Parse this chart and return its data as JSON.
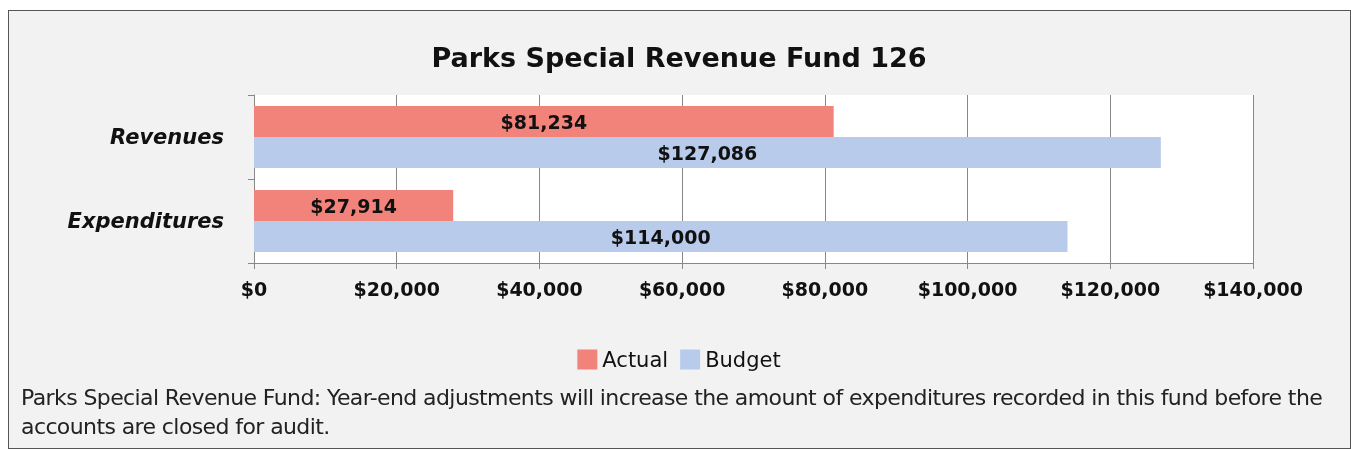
{
  "chart_data": {
    "type": "bar",
    "orientation": "horizontal",
    "title": "Parks Special Revenue Fund 126",
    "categories": [
      "Revenues",
      "Expenditures"
    ],
    "series": [
      {
        "name": "Actual",
        "color": "#f2837a",
        "values": [
          81234,
          27914
        ],
        "value_labels": [
          "$81,234",
          "$27,914"
        ]
      },
      {
        "name": "Budget",
        "color": "#b9cbeb",
        "values": [
          127086,
          114000
        ],
        "value_labels": [
          "$127,086",
          "$114,000"
        ]
      }
    ],
    "xlim": [
      0,
      140000
    ],
    "xticks": [
      {
        "value": 0,
        "label": "$0"
      },
      {
        "value": 20000,
        "label": "$20,000"
      },
      {
        "value": 40000,
        "label": "$40,000"
      },
      {
        "value": 60000,
        "label": "$60,000"
      },
      {
        "value": 80000,
        "label": "$80,000"
      },
      {
        "value": 100000,
        "label": "$100,000"
      },
      {
        "value": 120000,
        "label": "$120,000"
      },
      {
        "value": 140000,
        "label": "$140,000"
      }
    ],
    "grid": "x",
    "legend": "bottom",
    "annotations": [
      "Parks Special Revenue Fund: Year-end adjustments will increase the amount of expenditures recorded in this fund before the accounts are closed for audit."
    ]
  }
}
